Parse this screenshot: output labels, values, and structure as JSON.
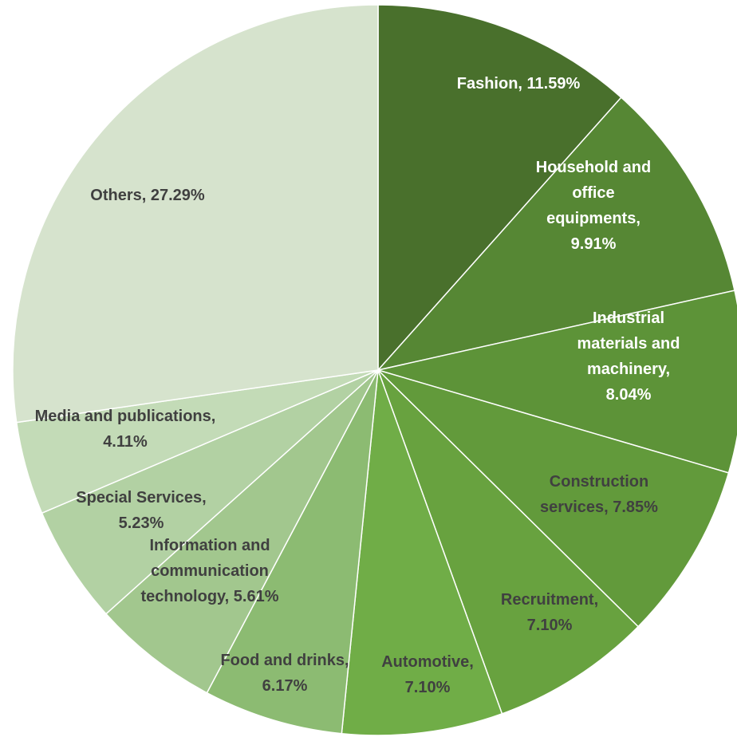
{
  "chart_data": {
    "type": "pie",
    "title": "",
    "start_angle_deg": 0,
    "direction": "clockwise",
    "slices": [
      {
        "label": "Fashion",
        "value": 11.59,
        "display": "11.59%",
        "label_lines": [
          "Fashion, 11.59%"
        ],
        "color": "#49702c",
        "text_color": "#ffffff"
      },
      {
        "label": "Household and office equipments",
        "value": 9.91,
        "display": "9.91%",
        "label_lines": [
          "Household and",
          "office",
          "equipments,",
          "9.91%"
        ],
        "color": "#568734",
        "text_color": "#ffffff"
      },
      {
        "label": "Industrial materials and machinery",
        "value": 8.04,
        "display": "8.04%",
        "label_lines": [
          "Industrial",
          "materials and",
          "machinery,",
          "8.04%"
        ],
        "color": "#5d9338",
        "text_color": "#ffffff"
      },
      {
        "label": "Construction services",
        "value": 7.85,
        "display": "7.85%",
        "label_lines": [
          "Construction",
          "services, 7.85%"
        ],
        "color": "#629a3b",
        "text_color": "#404040"
      },
      {
        "label": "Recruitment",
        "value": 7.1,
        "display": "7.10%",
        "label_lines": [
          "Recruitment,",
          "7.10%"
        ],
        "color": "#68a23f",
        "text_color": "#404040"
      },
      {
        "label": "Automotive",
        "value": 7.1,
        "display": "7.10%",
        "label_lines": [
          "Automotive,",
          "7.10%"
        ],
        "color": "#70ad47",
        "text_color": "#404040"
      },
      {
        "label": "Food and drinks",
        "value": 6.17,
        "display": "6.17%",
        "label_lines": [
          "Food and drinks,",
          "6.17%"
        ],
        "color": "#8cbb72",
        "text_color": "#404040"
      },
      {
        "label": "Information and communication technology",
        "value": 5.61,
        "display": "5.61%",
        "label_lines": [
          "Information and",
          "communication",
          "technology, 5.61%"
        ],
        "color": "#a2c78e",
        "text_color": "#404040"
      },
      {
        "label": "Special Services",
        "value": 5.23,
        "display": "5.23%",
        "label_lines": [
          "Special Services,",
          "5.23%"
        ],
        "color": "#b2d1a3",
        "text_color": "#404040"
      },
      {
        "label": "Media and publications",
        "value": 4.11,
        "display": "4.11%",
        "label_lines": [
          "Media and publications,",
          "4.11%"
        ],
        "color": "#c3dbb7",
        "text_color": "#404040"
      },
      {
        "label": "Others",
        "value": 27.29,
        "display": "27.29%",
        "label_lines": [
          "Others, 27.29%"
        ],
        "color": "#d6e3cd",
        "text_color": "#404040"
      }
    ]
  }
}
